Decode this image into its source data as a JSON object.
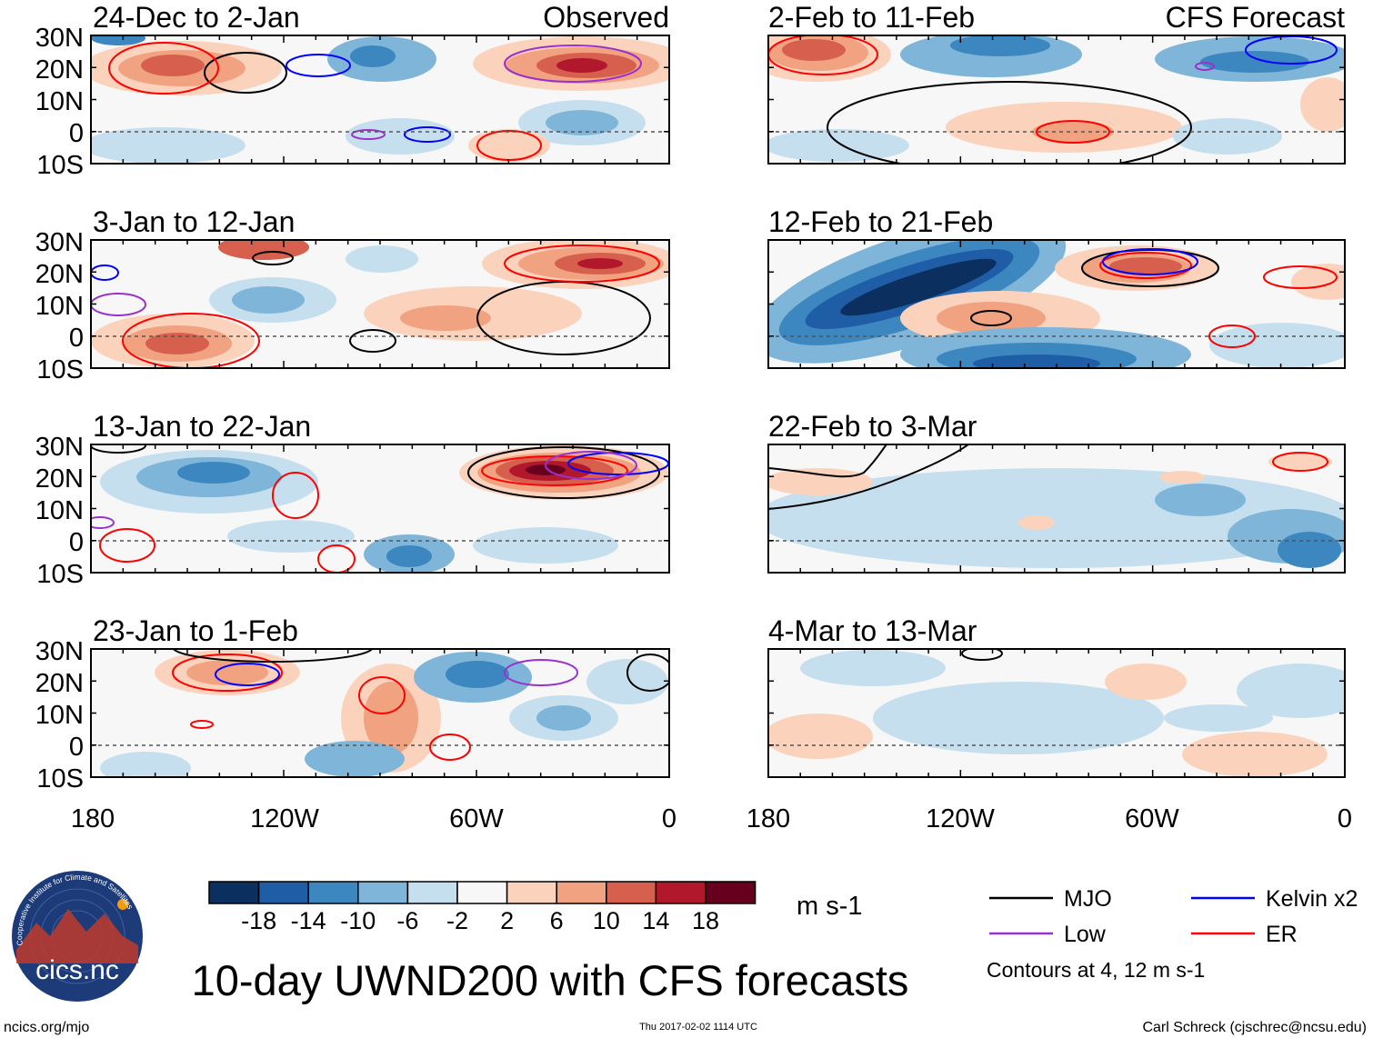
{
  "main_title": "10-day UWND200 with CFS forecasts",
  "observed_label": "Observed",
  "forecast_label": "CFS Forecast",
  "latitude_ticks": [
    "30N",
    "20N",
    "10N",
    "0",
    "10S"
  ],
  "longitude_ticks": [
    "180",
    "120W",
    "60W",
    "0"
  ],
  "panels_observed": [
    {
      "period": "24-Dec to 2-Jan"
    },
    {
      "period": "3-Jan to 12-Jan"
    },
    {
      "period": "13-Jan to 22-Jan"
    },
    {
      "period": "23-Jan to 1-Feb"
    }
  ],
  "panels_forecast": [
    {
      "period": "2-Feb to 11-Feb"
    },
    {
      "period": "12-Feb to 21-Feb"
    },
    {
      "period": "22-Feb to 3-Mar"
    },
    {
      "period": "4-Mar to 13-Mar"
    }
  ],
  "colorbar": {
    "units": "m s-1",
    "labels": [
      "-18",
      "-14",
      "-10",
      "-6",
      "-2",
      "2",
      "6",
      "10",
      "14",
      "18"
    ],
    "colors": [
      "#0b2f5e",
      "#1f5ea6",
      "#3c87c0",
      "#7eb5d8",
      "#c6dfee",
      "#f7f7f7",
      "#fbd3bd",
      "#f1a281",
      "#d6604d",
      "#b2182b",
      "#67001f"
    ]
  },
  "legend": {
    "items": [
      {
        "label": "MJO",
        "color": "#000000"
      },
      {
        "label": "Kelvin x2",
        "color": "#0000ff"
      },
      {
        "label": "Low",
        "color": "#9932cc"
      },
      {
        "label": "ER",
        "color": "#ff0000"
      }
    ],
    "note": "Contours at 4, 12 m s-1"
  },
  "logo_text": "cics.nc",
  "logo_ring_text": "Cooperative Institute for Climate and Satellites",
  "footer": {
    "left": "ncics.org/mjo",
    "center": "Thu 2017-02-02 1114 UTC",
    "right": "Carl Schreck (cjschrec@ncsu.edu)"
  }
}
